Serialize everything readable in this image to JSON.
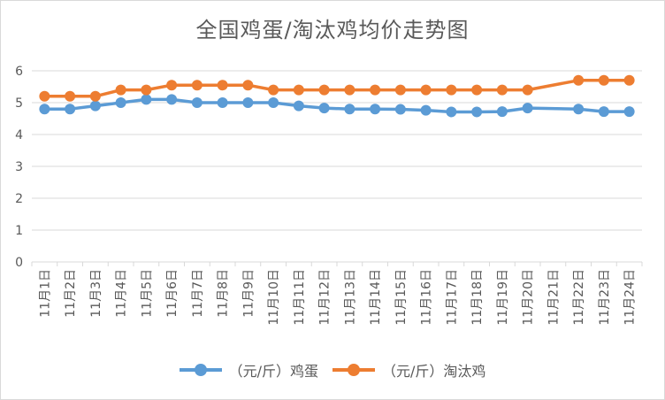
{
  "chart_data": {
    "type": "line",
    "title": "全国鸡蛋/淘汰鸡均价走势图",
    "xlabel": "",
    "ylabel": "",
    "categories": [
      "11月1日",
      "11月2日",
      "11月3日",
      "11月4日",
      "11月5日",
      "11月6日",
      "11月7日",
      "11月8日",
      "11月9日",
      "11月10日",
      "11月11日",
      "11月12日",
      "11月13日",
      "11月14日",
      "11月15日",
      "11月16日",
      "11月17日",
      "11月18日",
      "11月19日",
      "11月20日",
      "11月21日",
      "11月22日",
      "11月23日",
      "11月24日"
    ],
    "ylim": [
      0,
      6
    ],
    "yticks": [
      "0",
      "1",
      "2",
      "3",
      "4",
      "5",
      "6"
    ],
    "grid": true,
    "legend_position": "bottom",
    "series": [
      {
        "name": "（元/斤）鸡蛋",
        "color": "#5b9bd5",
        "values": [
          4.8,
          4.8,
          4.9,
          5.0,
          5.1,
          5.1,
          5.0,
          5.0,
          5.0,
          5.0,
          4.9,
          4.83,
          4.8,
          4.8,
          4.79,
          4.76,
          4.71,
          4.71,
          4.72,
          4.83,
          null,
          4.8,
          4.72,
          4.72
        ]
      },
      {
        "name": "（元/斤）淘汰鸡",
        "color": "#ed7d31",
        "values": [
          5.2,
          5.2,
          5.2,
          5.4,
          5.4,
          5.55,
          5.55,
          5.55,
          5.55,
          5.4,
          5.4,
          5.4,
          5.4,
          5.4,
          5.4,
          5.4,
          5.4,
          5.4,
          5.4,
          5.4,
          null,
          5.7,
          5.7,
          5.7
        ]
      }
    ]
  }
}
